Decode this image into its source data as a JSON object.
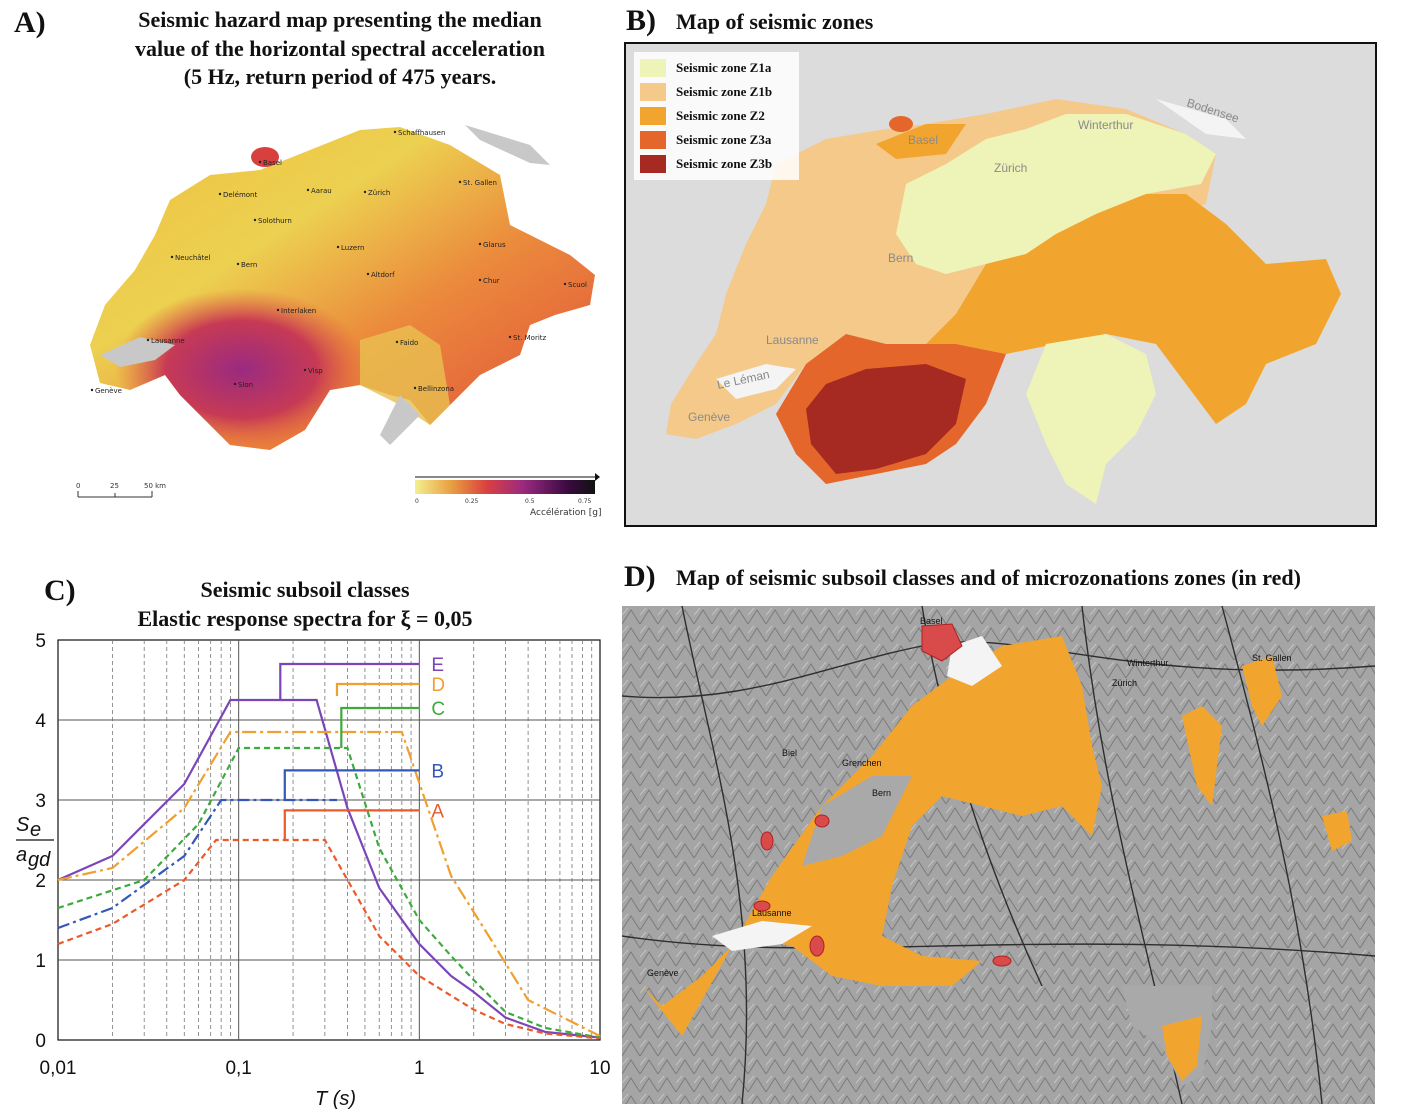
{
  "panel_a": {
    "letter": "A)",
    "title_lines": [
      "Seismic hazard map presenting the median",
      "value of  the horizontal spectral acceleration",
      "(5 Hz, return period of 475 years."
    ],
    "cities": [
      "Schaffhausen",
      "Basel",
      "Delémont",
      "Aarau",
      "Zürich",
      "St. Gallen",
      "Solothurn",
      "Luzern",
      "Glarus",
      "Neuchâtel",
      "Bern",
      "Altdorf",
      "Chur",
      "Scuol",
      "Interlaken",
      "Lausanne",
      "Faido",
      "St. Moritz",
      "Sion",
      "Visp",
      "Genève",
      "Bellinzona"
    ],
    "scalebar": [
      "0",
      "25",
      "50 km"
    ],
    "colorbar": {
      "ticks": [
        "0",
        "0.25",
        "0.5",
        "0.75"
      ],
      "title": "Accélération [g]"
    }
  },
  "panel_b": {
    "letter": "B)",
    "title": "Map of seismic zones",
    "legend": [
      {
        "label": "Seismic zone Z1a",
        "color": "#eef3b8"
      },
      {
        "label": "Seismic zone Z1b",
        "color": "#f4c98a"
      },
      {
        "label": "Seismic zone Z2",
        "color": "#f2a52e"
      },
      {
        "label": "Seismic zone Z3a",
        "color": "#e4662a"
      },
      {
        "label": "Seismic zone Z3b",
        "color": "#a72a22"
      }
    ],
    "places": [
      "Basel",
      "Winterthur",
      "Bodensee",
      "Zürich",
      "Bern",
      "Lausanne",
      "Le Léman",
      "Genève"
    ]
  },
  "panel_c": {
    "letter": "C)",
    "title_lines": [
      "Seismic subsoil classes",
      "Elastic response spectra for ξ = 0,05"
    ],
    "ylabel_num": "S",
    "ylabel_num_sub": "e",
    "ylabel_den": "a",
    "ylabel_den_sub": "gd",
    "xlabel": "T (s)"
  },
  "chart_data": {
    "type": "line",
    "xscale": "log",
    "xlim": [
      0.01,
      10
    ],
    "ylim": [
      0,
      5
    ],
    "x_ticks": [
      "0,01",
      "0,1",
      "1",
      "10"
    ],
    "y_ticks": [
      "0",
      "1",
      "2",
      "3",
      "4",
      "5"
    ],
    "series": [
      {
        "name": "E",
        "color": "#7b45b8",
        "dash": "solid",
        "x": [
          0.01,
          0.02,
          0.05,
          0.09,
          0.27,
          0.4,
          0.6,
          1,
          1.5,
          2,
          3,
          5,
          10
        ],
        "y": [
          2.0,
          2.3,
          3.2,
          4.25,
          4.25,
          2.9,
          1.9,
          1.2,
          0.8,
          0.6,
          0.28,
          0.1,
          0.03
        ],
        "step_x": [
          0.17,
          0.17,
          1.0
        ],
        "step_y": [
          4.25,
          4.7,
          4.7
        ]
      },
      {
        "name": "D",
        "color": "#f0a030",
        "dash": "longdash",
        "x": [
          0.01,
          0.02,
          0.05,
          0.09,
          0.8,
          1.5,
          2.5,
          4,
          10
        ],
        "y": [
          2.0,
          2.15,
          2.9,
          3.85,
          3.85,
          2.05,
          1.25,
          0.5,
          0.05
        ],
        "step_x": [
          0.35,
          0.35,
          1.0
        ],
        "step_y": [
          4.3,
          4.45,
          4.45
        ]
      },
      {
        "name": "C",
        "color": "#3daa3d",
        "dash": "short",
        "x": [
          0.01,
          0.03,
          0.06,
          0.1,
          0.4,
          0.6,
          1,
          1.5,
          2,
          3,
          5,
          10
        ],
        "y": [
          1.65,
          2.0,
          2.7,
          3.65,
          3.65,
          2.4,
          1.5,
          1.05,
          0.75,
          0.35,
          0.15,
          0.03
        ],
        "step_x": [
          0.37,
          0.37,
          1.0
        ],
        "step_y": [
          3.65,
          4.15,
          4.15
        ]
      },
      {
        "name": "B",
        "color": "#3358b8",
        "dash": "dashdot",
        "x": [
          0.01,
          0.02,
          0.05,
          0.08,
          0.35
        ],
        "y": [
          1.4,
          1.65,
          2.3,
          3.0,
          3.0
        ],
        "step_x": [
          0.18,
          0.18,
          1.0
        ],
        "step_y": [
          3.0,
          3.37,
          3.37
        ]
      },
      {
        "name": "A",
        "color": "#ea5a2a",
        "dash": "short",
        "x": [
          0.01,
          0.02,
          0.05,
          0.075,
          0.3,
          0.6,
          1,
          2,
          3,
          5,
          10
        ],
        "y": [
          1.2,
          1.45,
          2.0,
          2.5,
          2.5,
          1.3,
          0.8,
          0.38,
          0.2,
          0.08,
          0.02
        ],
        "step_x": [
          0.18,
          0.18,
          1.0
        ],
        "step_y": [
          2.5,
          2.87,
          2.87
        ]
      }
    ]
  },
  "panel_d": {
    "letter": "D)",
    "title": "Map of seismic subsoil classes and of microzonations zones (in red)",
    "places": [
      "Basel",
      "Winterthur",
      "Zürich",
      "St. Gallen",
      "Bern",
      "Lausanne",
      "Genève",
      "Biel",
      "Grenchen"
    ]
  }
}
